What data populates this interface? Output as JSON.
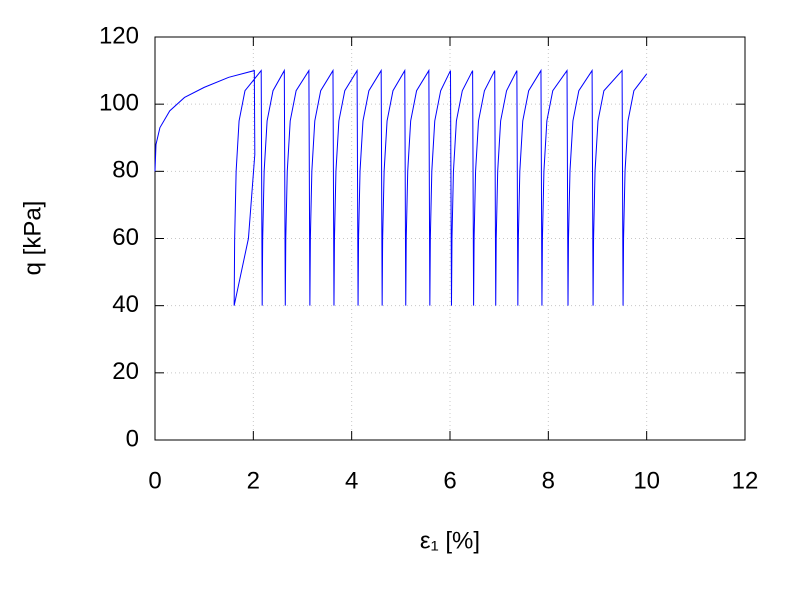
{
  "chart_data": {
    "type": "line",
    "x_label": "ε₁ [%]",
    "y_label": "q [kPa]",
    "xlim": [
      0,
      12
    ],
    "xticks": [
      0,
      2,
      4,
      6,
      8,
      10,
      12
    ],
    "ylim": [
      0,
      120
    ],
    "yticks": [
      0,
      20,
      40,
      60,
      80,
      100,
      120
    ],
    "grid": true,
    "x": [
      0,
      0.02,
      0.1,
      0.3,
      0.6,
      1.0,
      1.5,
      2.02,
      2.03,
      1.9,
      1.61,
      1.62,
      1.65,
      1.71,
      1.83,
      2.16,
      2.18,
      2.19,
      2.22,
      2.28,
      2.4,
      2.63,
      2.65,
      2.66,
      2.69,
      2.75,
      2.87,
      3.13,
      3.15,
      3.16,
      3.19,
      3.25,
      3.37,
      3.62,
      3.64,
      3.65,
      3.68,
      3.74,
      3.86,
      4.11,
      4.13,
      4.14,
      4.17,
      4.23,
      4.35,
      4.6,
      4.62,
      4.63,
      4.66,
      4.72,
      4.84,
      5.08,
      5.1,
      5.11,
      5.14,
      5.2,
      5.32,
      5.57,
      5.59,
      5.6,
      5.63,
      5.69,
      5.81,
      6.01,
      6.03,
      6.04,
      6.07,
      6.13,
      6.25,
      6.46,
      6.48,
      6.49,
      6.52,
      6.58,
      6.7,
      6.91,
      6.93,
      6.94,
      6.97,
      7.03,
      7.15,
      7.36,
      7.38,
      7.39,
      7.42,
      7.48,
      7.6,
      7.85,
      7.87,
      7.88,
      7.91,
      7.97,
      8.09,
      8.38,
      8.4,
      8.41,
      8.44,
      8.5,
      8.62,
      8.89,
      8.91,
      8.92,
      8.95,
      9.01,
      9.13,
      9.5,
      9.52,
      9.53,
      9.56,
      9.62,
      9.74,
      10.0
    ],
    "series": [
      {
        "color": "#0000ff",
        "values": [
          80,
          88,
          93,
          98,
          102,
          105,
          108,
          110,
          85,
          60,
          40,
          60,
          80,
          95,
          104,
          110,
          40,
          60,
          80,
          95,
          104,
          110,
          40,
          60,
          80,
          95,
          104,
          110,
          40,
          60,
          80,
          95,
          104,
          110,
          40,
          60,
          80,
          95,
          104,
          110,
          40,
          60,
          80,
          95,
          104,
          110,
          40,
          60,
          80,
          95,
          104,
          110,
          40,
          60,
          80,
          95,
          104,
          110,
          40,
          60,
          80,
          95,
          104,
          110,
          40,
          60,
          80,
          95,
          104,
          110,
          40,
          60,
          80,
          95,
          104,
          110,
          40,
          60,
          80,
          95,
          104,
          110,
          40,
          60,
          80,
          95,
          104,
          110,
          40,
          60,
          80,
          95,
          104,
          110,
          40,
          60,
          80,
          95,
          104,
          110,
          40,
          60,
          80,
          95,
          104,
          110,
          40,
          60,
          80,
          95,
          104,
          109
        ]
      }
    ]
  }
}
